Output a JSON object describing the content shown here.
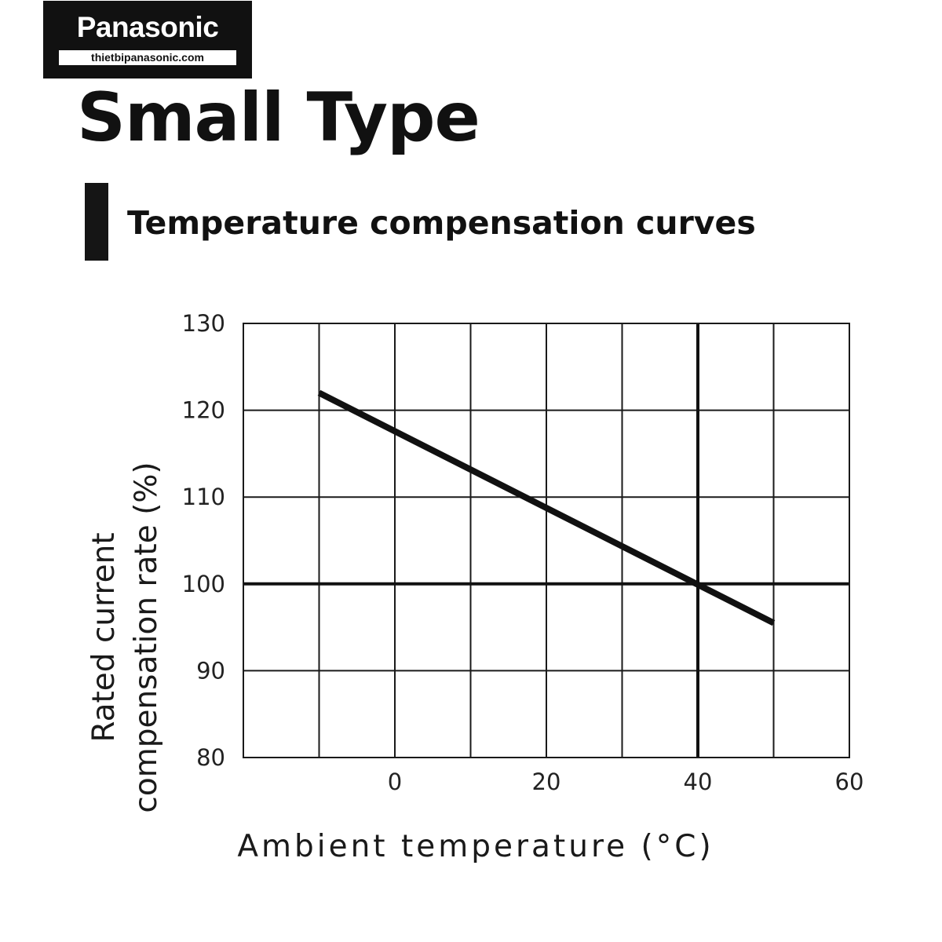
{
  "logo": {
    "brand": "Panasonic",
    "website": "thietbipanasonic.com"
  },
  "title": "Small Type",
  "subtitle": "Temperature compensation curves",
  "colors": {
    "background": "#ffffff",
    "ink": "#111111",
    "grid": "#1a1a1a"
  },
  "chart_data": {
    "type": "line",
    "title": "",
    "xlabel": "Ambient temperature (°C)",
    "ylabel_lines": [
      "Rated current",
      "compensation rate (%)"
    ],
    "xlim": [
      -20,
      60
    ],
    "ylim": [
      80,
      130
    ],
    "x_ticks": [
      0,
      20,
      40,
      60
    ],
    "x_tick_labels": [
      "0",
      "20",
      "40",
      "60"
    ],
    "y_ticks": [
      80,
      90,
      100,
      110,
      120,
      130
    ],
    "y_tick_labels": [
      "80",
      "90",
      "100",
      "110",
      "120",
      "130"
    ],
    "x_grid": [
      -10,
      0,
      10,
      20,
      30,
      40,
      50
    ],
    "y_grid": [
      90,
      100,
      110,
      120
    ],
    "reference_lines": {
      "x": 40,
      "y": 100
    },
    "grid": true,
    "series": [
      {
        "x": [
          -10,
          50
        ],
        "y": [
          122,
          95.5
        ]
      }
    ]
  }
}
